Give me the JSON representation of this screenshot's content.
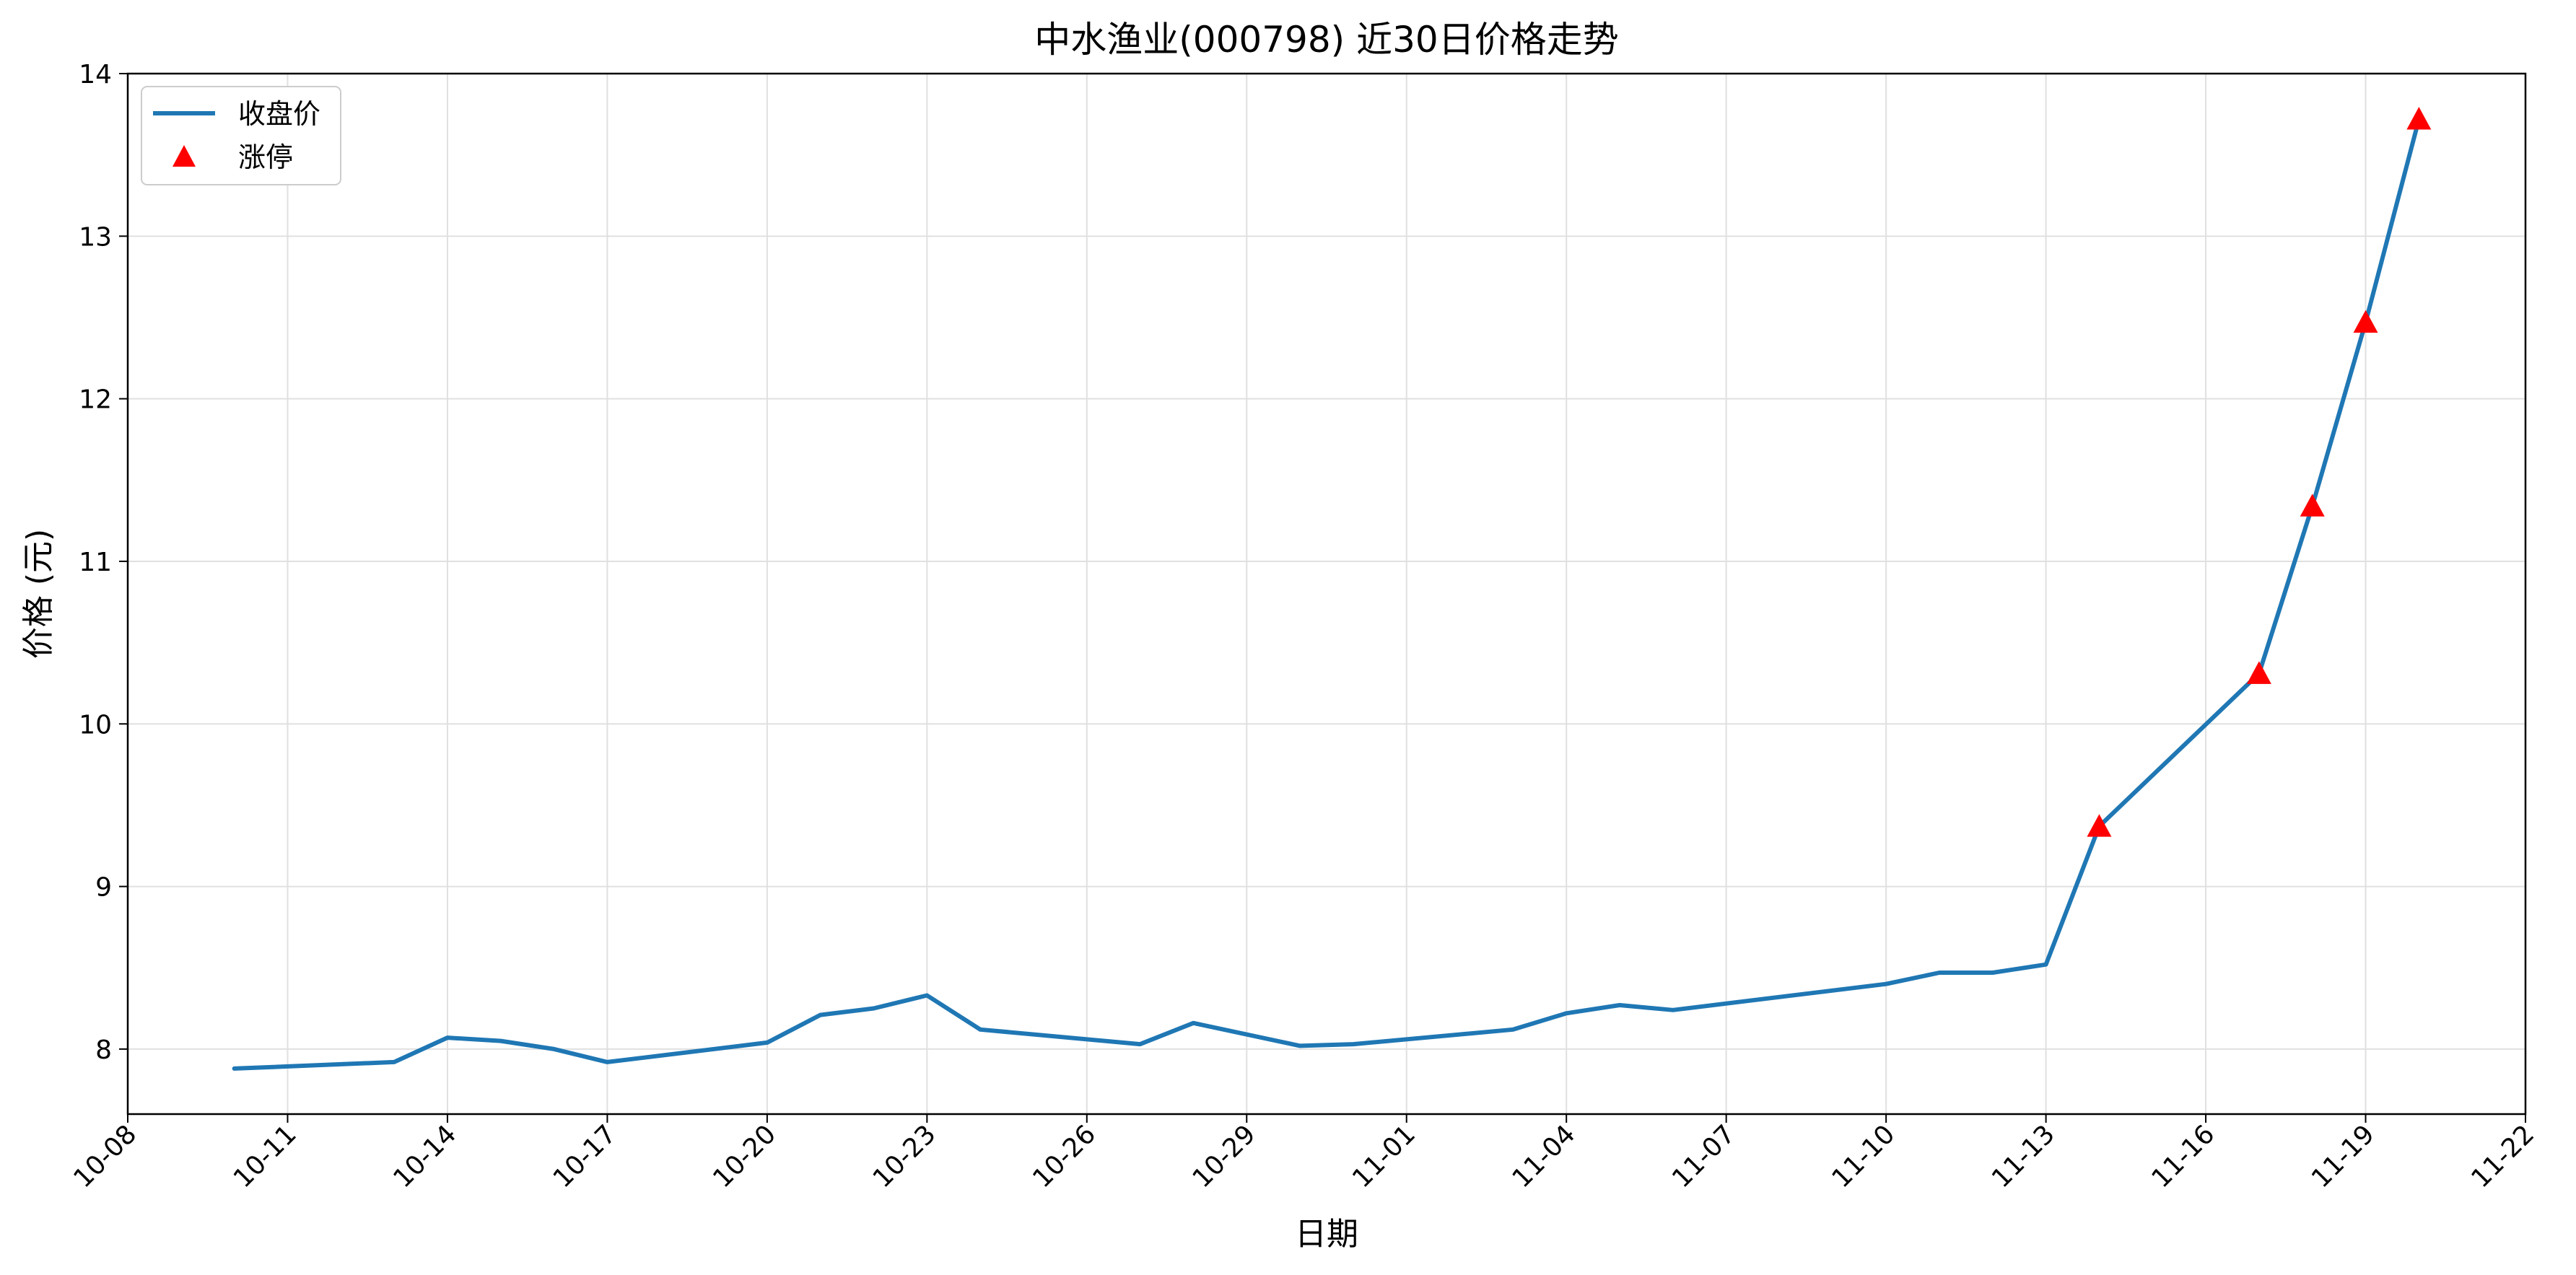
{
  "chart_data": {
    "type": "line",
    "title": "中水渔业(000798) 近30日价格走势",
    "xlabel": "日期",
    "ylabel": "价格 (元)",
    "year": 2025,
    "xlim": [
      "2025-10-08",
      "2025-11-22"
    ],
    "ylim": [
      7.6,
      14.0
    ],
    "x_ticks": [
      "10-08",
      "10-11",
      "10-14",
      "10-17",
      "10-20",
      "10-23",
      "10-26",
      "10-29",
      "11-01",
      "11-04",
      "11-07",
      "11-10",
      "11-13",
      "11-16",
      "11-19",
      "11-22"
    ],
    "y_ticks": [
      8,
      9,
      10,
      11,
      12,
      13,
      14
    ],
    "grid": true,
    "legend_position": "top-left",
    "series": [
      {
        "name": "收盘价",
        "kind": "line",
        "color": "#1f77b4",
        "points": [
          {
            "date": "10-10",
            "value": 7.88
          },
          {
            "date": "10-13",
            "value": 7.92
          },
          {
            "date": "10-14",
            "value": 8.07
          },
          {
            "date": "10-15",
            "value": 8.05
          },
          {
            "date": "10-16",
            "value": 8.0
          },
          {
            "date": "10-17",
            "value": 7.92
          },
          {
            "date": "10-20",
            "value": 8.04
          },
          {
            "date": "10-21",
            "value": 8.21
          },
          {
            "date": "10-22",
            "value": 8.25
          },
          {
            "date": "10-23",
            "value": 8.33
          },
          {
            "date": "10-24",
            "value": 8.12
          },
          {
            "date": "10-27",
            "value": 8.03
          },
          {
            "date": "10-28",
            "value": 8.16
          },
          {
            "date": "10-30",
            "value": 8.02
          },
          {
            "date": "10-31",
            "value": 8.03
          },
          {
            "date": "11-03",
            "value": 8.12
          },
          {
            "date": "11-04",
            "value": 8.22
          },
          {
            "date": "11-05",
            "value": 8.27
          },
          {
            "date": "11-06",
            "value": 8.24
          },
          {
            "date": "11-10",
            "value": 8.4
          },
          {
            "date": "11-11",
            "value": 8.47
          },
          {
            "date": "11-12",
            "value": 8.47
          },
          {
            "date": "11-13",
            "value": 8.52
          },
          {
            "date": "11-14",
            "value": 9.37
          },
          {
            "date": "11-17",
            "value": 10.31
          },
          {
            "date": "11-18",
            "value": 11.34
          },
          {
            "date": "11-19",
            "value": 12.47
          },
          {
            "date": "11-20",
            "value": 13.72
          }
        ]
      },
      {
        "name": "涨停",
        "kind": "scatter",
        "marker": "triangle",
        "color": "#ff0000",
        "points": [
          {
            "date": "11-14",
            "value": 9.37
          },
          {
            "date": "11-17",
            "value": 10.31
          },
          {
            "date": "11-18",
            "value": 11.34
          },
          {
            "date": "11-19",
            "value": 12.47
          },
          {
            "date": "11-20",
            "value": 13.72
          }
        ]
      }
    ]
  }
}
